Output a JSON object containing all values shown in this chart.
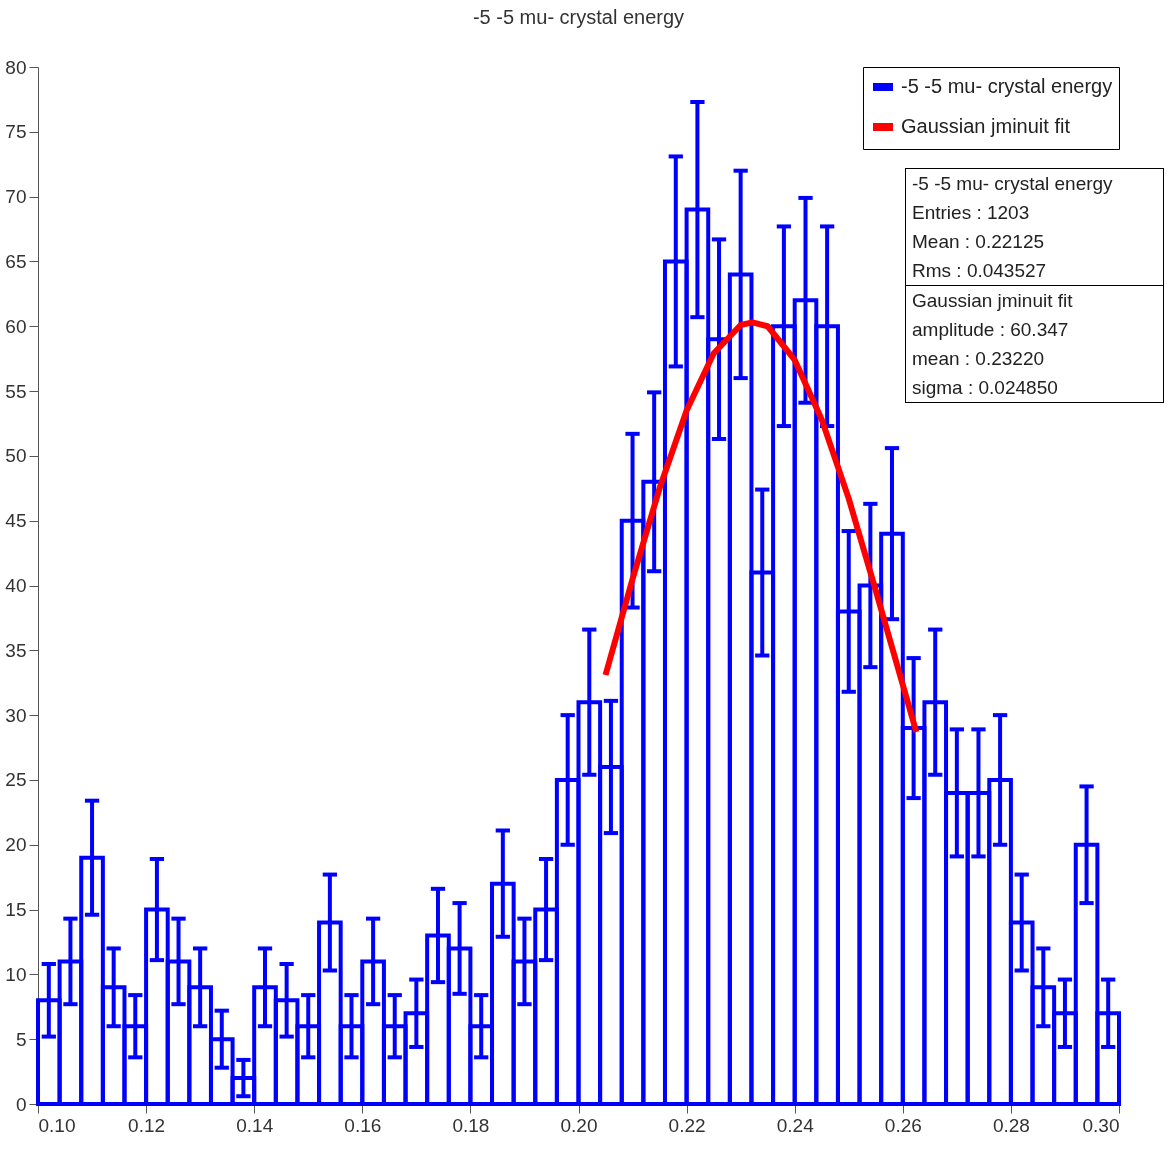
{
  "chart_data": {
    "type": "histogram",
    "title": "-5 -5 mu- crystal energy",
    "bins": [
      0.1,
      0.104,
      0.108,
      0.112,
      0.116,
      0.12,
      0.124,
      0.128,
      0.132,
      0.136,
      0.14,
      0.144,
      0.148,
      0.152,
      0.156,
      0.16,
      0.164,
      0.168,
      0.172,
      0.176,
      0.18,
      0.184,
      0.188,
      0.192,
      0.196,
      0.2,
      0.204,
      0.208,
      0.212,
      0.216,
      0.22,
      0.224,
      0.228,
      0.232,
      0.236,
      0.24,
      0.244,
      0.248,
      0.252,
      0.256,
      0.26,
      0.264,
      0.268,
      0.272,
      0.276,
      0.28,
      0.284,
      0.288,
      0.292,
      0.296,
      0.3
    ],
    "series": [
      {
        "name": "-5 -5 mu- crystal energy",
        "color": "#0000ff",
        "values": [
          8,
          11,
          19,
          9,
          6,
          15,
          11,
          9,
          5,
          2,
          9,
          8,
          6,
          14,
          6,
          11,
          6,
          7,
          13,
          12,
          6,
          17,
          11,
          15,
          25,
          31,
          26,
          45,
          48,
          65,
          69,
          59,
          64,
          41,
          60,
          62,
          60,
          38,
          40,
          44,
          29,
          31,
          24,
          24,
          25,
          14,
          9,
          7,
          20,
          7
        ],
        "errors": [
          2.8,
          3.3,
          4.4,
          3,
          2.4,
          3.9,
          3.3,
          3,
          2.2,
          1.4,
          3,
          2.8,
          2.4,
          3.7,
          2.4,
          3.3,
          2.4,
          2.6,
          3.6,
          3.5,
          2.4,
          4.1,
          3.3,
          3.9,
          5,
          5.6,
          5.1,
          6.7,
          6.9,
          8.1,
          8.3,
          7.7,
          8,
          6.4,
          7.7,
          7.9,
          7.7,
          6.2,
          6.3,
          6.6,
          5.4,
          5.6,
          4.9,
          4.9,
          5,
          3.7,
          3,
          2.6,
          4.5,
          2.6
        ]
      },
      {
        "name": "Gaussian jminuit fit",
        "type": "line",
        "color": "#ff0000",
        "x": [
          0.205,
          0.21,
          0.215,
          0.22,
          0.225,
          0.23,
          0.2322,
          0.235,
          0.24,
          0.245,
          0.25,
          0.255,
          0.2625
        ],
        "values": [
          33.1,
          40.5,
          47.5,
          53.5,
          57.9,
          60.1,
          60.3,
          60.0,
          57.4,
          52.8,
          46.7,
          39.6,
          28.7
        ]
      }
    ],
    "xlim": [
      0.1,
      0.3
    ],
    "xticks": [
      {
        "value": 0.1,
        "label": "0.10"
      },
      0.12,
      0.14,
      0.16,
      0.18,
      {
        "value": 0.2,
        "label": "0.20"
      },
      0.22,
      0.24,
      0.26,
      0.28,
      {
        "value": 0.3,
        "label": "0.30"
      }
    ],
    "ylim": [
      0,
      80
    ],
    "yticks": [
      0,
      5,
      10,
      15,
      20,
      25,
      30,
      35,
      40,
      45,
      50,
      55,
      60,
      65,
      70,
      75,
      80
    ],
    "legend": "top right",
    "annotations": [
      "-5 -5 mu- crystal energy",
      "Entries : 1203",
      "Mean : 0.22125",
      "Rms : 0.043527",
      "Gaussian jminuit fit",
      "amplitude : 60.347",
      "mean : 0.23220",
      "sigma : 0.024850"
    ]
  }
}
